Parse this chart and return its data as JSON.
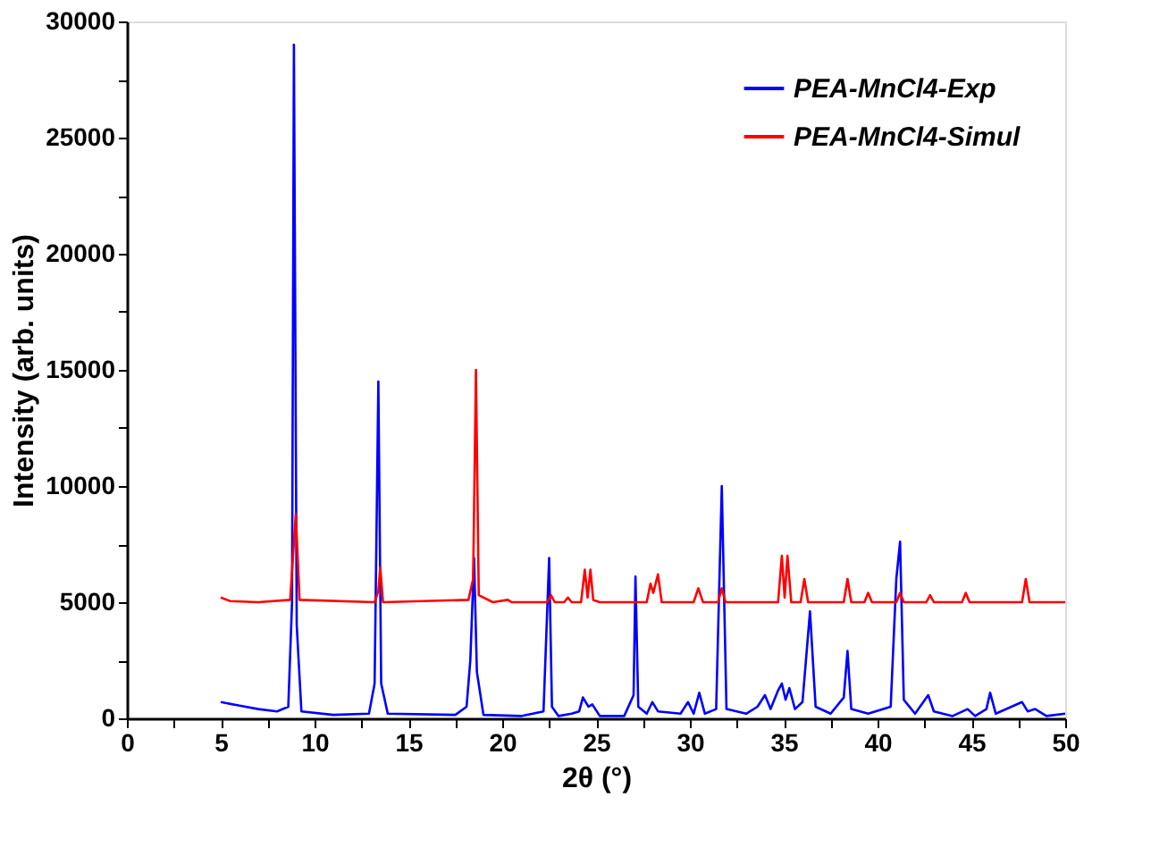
{
  "chart_data": {
    "type": "line",
    "xlabel": "2θ (°)",
    "ylabel": "Intensity (arb. units)",
    "xlim": [
      0,
      50
    ],
    "ylim": [
      0,
      30000
    ],
    "xticks": [
      0,
      {
        "value": 2.5,
        "label": null
      },
      5,
      {
        "value": 7.5,
        "label": null
      },
      10,
      {
        "value": 12.5,
        "label": null
      },
      15,
      {
        "value": 17.5,
        "label": null
      },
      20,
      {
        "value": 22.5,
        "label": null
      },
      25,
      {
        "value": 27.5,
        "label": null
      },
      30,
      {
        "value": 32.5,
        "label": null
      },
      35,
      {
        "value": 37.5,
        "label": null
      },
      40,
      {
        "value": 42.5,
        "label": null
      },
      45,
      {
        "value": 47.5,
        "label": null
      },
      50
    ],
    "yticks": [
      0,
      {
        "value": 2500,
        "label": null
      },
      5000,
      {
        "value": 7500,
        "label": null
      },
      10000,
      {
        "value": 12500,
        "label": null
      },
      15000,
      {
        "value": 17500,
        "label": null
      },
      20000,
      {
        "value": 22500,
        "label": null
      },
      25000,
      {
        "value": 27500,
        "label": null
      },
      30000
    ],
    "legend": "top right",
    "grid": false,
    "line_style": "solid",
    "marker": "none",
    "series": [
      {
        "name": "PEA-MnCl4-Exp",
        "color": "#0000ff",
        "x": [
          5,
          6,
          7,
          8,
          8.6,
          8.8,
          8.9,
          9.05,
          9.3,
          11,
          12.9,
          13.2,
          13.4,
          13.55,
          13.9,
          17.5,
          18.1,
          18.3,
          18.5,
          18.65,
          19,
          21,
          22.2,
          22.5,
          22.65,
          23,
          23.7,
          24.1,
          24.3,
          24.6,
          24.8,
          25.2,
          26.5,
          27,
          27.1,
          27.25,
          27.7,
          28,
          28.3,
          29.5,
          29.9,
          30.2,
          30.5,
          30.8,
          31.4,
          31.7,
          31.95,
          33,
          33.6,
          34,
          34.3,
          34.7,
          34.9,
          35.1,
          35.3,
          35.6,
          36,
          36.4,
          36.7,
          37.5,
          38.2,
          38.4,
          38.6,
          39.5,
          40.7,
          41.0,
          41.2,
          41.4,
          42,
          42.7,
          43,
          44,
          44.8,
          45.2,
          45.8,
          46,
          46.3,
          47.7,
          48,
          48.4,
          49,
          50
        ],
        "values": [
          700,
          550,
          400,
          300,
          500,
          5000,
          29000,
          4000,
          300,
          150,
          200,
          1500,
          14500,
          1500,
          200,
          150,
          500,
          2500,
          6900,
          2000,
          150,
          100,
          300,
          6900,
          500,
          100,
          200,
          300,
          900,
          500,
          600,
          100,
          100,
          1000,
          6100,
          500,
          200,
          700,
          300,
          200,
          700,
          200,
          1100,
          200,
          400,
          10000,
          400,
          200,
          500,
          1000,
          400,
          1200,
          1500,
          800,
          1300,
          400,
          700,
          4600,
          500,
          200,
          900,
          2900,
          400,
          200,
          500,
          6000,
          7600,
          800,
          200,
          1000,
          300,
          100,
          400,
          100,
          400,
          1100,
          200,
          700,
          300,
          400,
          100,
          200
        ]
      },
      {
        "name": "PEA-MnCl4-Simul",
        "color": "#ff0000",
        "x": [
          5,
          5.5,
          7,
          8.7,
          9.0,
          9.2,
          13.2,
          13.4,
          13.5,
          13.65,
          18.2,
          18.45,
          18.6,
          18.75,
          19.5,
          20.3,
          20.5,
          22.4,
          22.6,
          22.8,
          23.3,
          23.5,
          23.7,
          24.2,
          24.4,
          24.55,
          24.7,
          24.85,
          25.2,
          27.7,
          27.9,
          28.05,
          28.3,
          28.5,
          30.2,
          30.45,
          30.7,
          31.5,
          31.7,
          31.9,
          34.7,
          34.9,
          35.05,
          35.2,
          35.4,
          35.9,
          36.1,
          36.3,
          38.2,
          38.4,
          38.6,
          39.3,
          39.5,
          39.7,
          41.0,
          41.2,
          41.4,
          42.6,
          42.8,
          43,
          44.5,
          44.7,
          44.9,
          47.7,
          47.9,
          48.1,
          50
        ],
        "values": [
          5200,
          5050,
          5000,
          5100,
          8800,
          5100,
          5000,
          5500,
          6500,
          5000,
          5100,
          6000,
          15000,
          5300,
          5000,
          5100,
          5000,
          5000,
          5300,
          5000,
          5000,
          5200,
          5000,
          5000,
          6400,
          5200,
          6400,
          5100,
          5000,
          5000,
          5800,
          5400,
          6200,
          5000,
          5000,
          5600,
          5000,
          5000,
          5600,
          5000,
          5000,
          7000,
          5200,
          7000,
          5000,
          5000,
          6000,
          5000,
          5000,
          6000,
          5000,
          5000,
          5400,
          5000,
          5000,
          5400,
          5000,
          5000,
          5300,
          5000,
          5000,
          5400,
          5000,
          5000,
          6000,
          5000,
          5000
        ]
      }
    ]
  }
}
